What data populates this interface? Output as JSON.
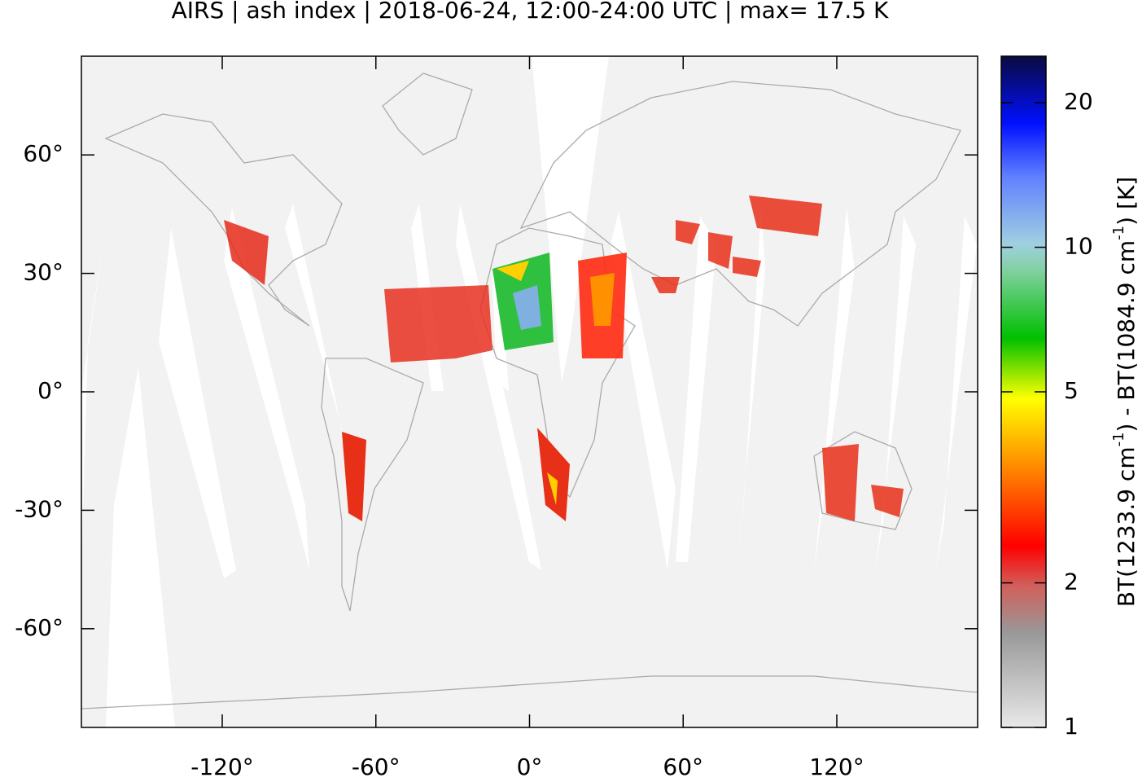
{
  "title": "AIRS | ash index | 2018-06-24, 12:00-24:00 UTC | max= 17.5 K",
  "map": {
    "xlim": [
      -175,
      175
    ],
    "ylim": [
      -85,
      85
    ],
    "xticks": [
      {
        "value": -120,
        "label": "-120°"
      },
      {
        "value": -60,
        "label": "-60°"
      },
      {
        "value": 0,
        "label": "0°"
      },
      {
        "value": 60,
        "label": "60°"
      },
      {
        "value": 120,
        "label": "120°"
      }
    ],
    "yticks": [
      {
        "value": 60,
        "label": "60°"
      },
      {
        "value": 30,
        "label": "30°"
      },
      {
        "value": 0,
        "label": "0°"
      },
      {
        "value": -30,
        "label": "-30°"
      },
      {
        "value": -60,
        "label": "-60°"
      }
    ]
  },
  "colorbar": {
    "label": [
      "BT(1233.9 cm",
      "-1",
      ") - BT(1084.9 cm",
      "-1",
      ") [K]"
    ],
    "lim": [
      1,
      25
    ],
    "log": true,
    "ticks": [
      1,
      2,
      5,
      10,
      20
    ]
  }
}
